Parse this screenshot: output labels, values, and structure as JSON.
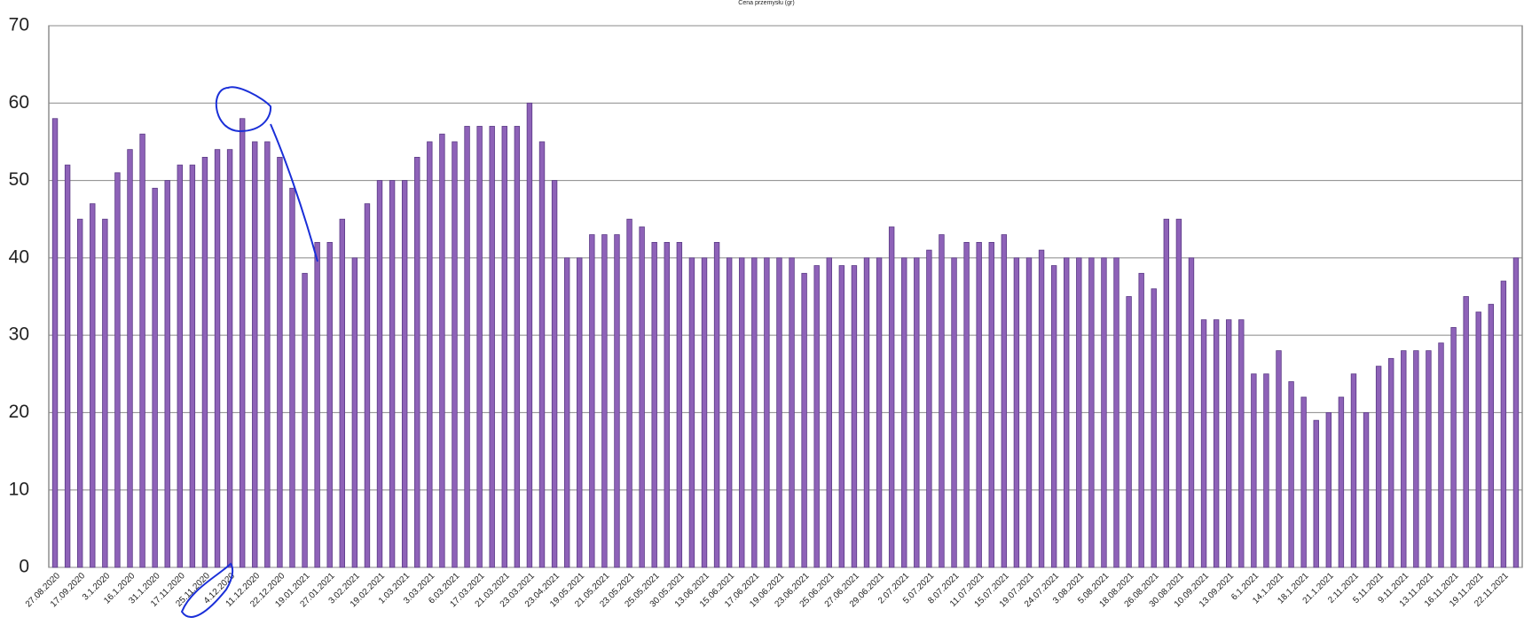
{
  "chart_data": {
    "type": "bar",
    "title": "Cena przemysłu (gr)",
    "categories": [
      "27.08.2020",
      null,
      "17.09.2020",
      null,
      "3.1.2020",
      null,
      "16.1.2020",
      null,
      "31.1.2020",
      null,
      "17.11.2020",
      null,
      "25.11.2020",
      null,
      "4.12.2020",
      null,
      "11.12.2020",
      null,
      "22.12.2020",
      null,
      "19.01.2021",
      null,
      "27.01.2021",
      null,
      "3.02.2021",
      null,
      "19.02.2021",
      null,
      "1.03.2021",
      null,
      "3.03.2021",
      null,
      "6.03.2021",
      null,
      "17.03.2021",
      null,
      "21.03.2021",
      null,
      "23.03.2021",
      null,
      "23.04.2021",
      null,
      "19.05.2021",
      null,
      "21.05.2021",
      null,
      "23.05.2021",
      null,
      "25.05.2021",
      null,
      "30.05.2021",
      null,
      "13.06.2021",
      null,
      "15.06.2021",
      null,
      "17.06.2021",
      null,
      "19.06.2021",
      null,
      "23.06.2021",
      null,
      "25.06.2021",
      null,
      "27.06.2021",
      null,
      "29.06.2021",
      null,
      "2.07.2021",
      null,
      "5.07.2021",
      null,
      "8.07.2021",
      null,
      "11.07.2021",
      null,
      "15.07.2021",
      null,
      "19.07.2021",
      null,
      "24.07.2021",
      null,
      "3.08.2021",
      null,
      "5.08.2021",
      null,
      "18.08.2021",
      null,
      "26.08.2021",
      null,
      "30.08.2021",
      null,
      "10.09.2021",
      null,
      "13.09.2021",
      null,
      "6.1.2021",
      null,
      "14.1.2021",
      null,
      "18.1.2021",
      null,
      "21.1.2021",
      null,
      "2.11.2021",
      null,
      "5.11.2021",
      null,
      "9.11.2021",
      null,
      "13.11.2021",
      null,
      "16.11.2021",
      null,
      "19.11.2021",
      null,
      "22.11.2021",
      null
    ],
    "values": [
      58,
      52,
      45,
      47,
      45,
      51,
      54,
      56,
      49,
      50,
      52,
      52,
      53,
      54,
      54,
      58,
      55,
      55,
      53,
      49,
      38,
      42,
      42,
      45,
      40,
      47,
      50,
      50,
      50,
      53,
      55,
      56,
      55,
      57,
      57,
      57,
      57,
      57,
      60,
      55,
      50,
      40,
      40,
      43,
      43,
      43,
      45,
      44,
      42,
      42,
      42,
      40,
      40,
      42,
      40,
      40,
      40,
      40,
      40,
      40,
      38,
      39,
      40,
      39,
      39,
      40,
      40,
      44,
      40,
      40,
      41,
      43,
      40,
      42,
      42,
      42,
      43,
      40,
      40,
      41,
      39,
      40,
      40,
      40,
      40,
      40,
      35,
      38,
      36,
      45,
      45,
      40,
      32,
      32,
      32,
      32,
      25,
      25,
      28,
      24,
      22,
      19,
      20,
      22,
      25,
      20,
      26,
      27,
      28,
      28,
      28,
      29,
      31,
      35,
      33,
      34,
      37,
      40
    ],
    "color": "#8e62b8",
    "ylim": [
      0,
      70
    ],
    "yticks": [
      0,
      10,
      20,
      30,
      40,
      50,
      60,
      70
    ],
    "grid": true
  }
}
